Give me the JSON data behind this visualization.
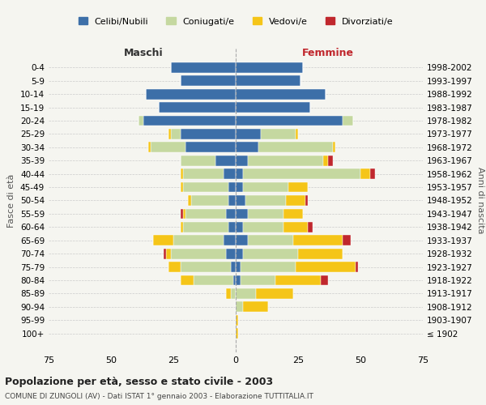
{
  "age_groups": [
    "0-4",
    "5-9",
    "10-14",
    "15-19",
    "20-24",
    "25-29",
    "30-34",
    "35-39",
    "40-44",
    "45-49",
    "50-54",
    "55-59",
    "60-64",
    "65-69",
    "70-74",
    "75-79",
    "80-84",
    "85-89",
    "90-94",
    "95-99",
    "100+"
  ],
  "birth_years": [
    "1998-2002",
    "1993-1997",
    "1988-1992",
    "1983-1987",
    "1978-1982",
    "1973-1977",
    "1968-1972",
    "1963-1967",
    "1958-1962",
    "1953-1957",
    "1948-1952",
    "1943-1947",
    "1938-1942",
    "1933-1937",
    "1928-1932",
    "1923-1927",
    "1918-1922",
    "1913-1917",
    "1908-1912",
    "1903-1907",
    "≤ 1902"
  ],
  "male_celibi": [
    26,
    22,
    36,
    31,
    37,
    22,
    20,
    8,
    5,
    3,
    3,
    4,
    3,
    5,
    4,
    2,
    1,
    0,
    0,
    0,
    0
  ],
  "male_coniugati": [
    0,
    0,
    0,
    0,
    2,
    4,
    14,
    14,
    16,
    18,
    15,
    16,
    18,
    20,
    22,
    20,
    16,
    2,
    0,
    0,
    0
  ],
  "male_vedovi": [
    0,
    0,
    0,
    0,
    0,
    1,
    1,
    0,
    1,
    1,
    1,
    1,
    1,
    8,
    2,
    5,
    5,
    2,
    0,
    0,
    0
  ],
  "male_divorziati": [
    0,
    0,
    0,
    0,
    0,
    0,
    0,
    0,
    0,
    0,
    0,
    1,
    0,
    0,
    1,
    0,
    0,
    0,
    0,
    0,
    0
  ],
  "female_celibi": [
    27,
    26,
    36,
    30,
    43,
    10,
    9,
    5,
    3,
    3,
    4,
    5,
    3,
    5,
    3,
    2,
    2,
    0,
    0,
    0,
    0
  ],
  "female_coniugati": [
    0,
    0,
    0,
    0,
    4,
    14,
    30,
    30,
    47,
    18,
    16,
    14,
    16,
    18,
    22,
    22,
    14,
    8,
    3,
    0,
    0
  ],
  "female_vedovi": [
    0,
    0,
    0,
    0,
    0,
    1,
    1,
    2,
    4,
    8,
    8,
    8,
    10,
    20,
    18,
    24,
    18,
    15,
    10,
    1,
    1
  ],
  "female_divorziati": [
    0,
    0,
    0,
    0,
    0,
    0,
    0,
    2,
    2,
    0,
    1,
    0,
    2,
    3,
    0,
    1,
    3,
    0,
    0,
    0,
    0
  ],
  "color_celibi": "#3d6fa8",
  "color_coniugati": "#c5d8a0",
  "color_vedovi": "#f5c518",
  "color_divorziati": "#c0272d",
  "background_color": "#f5f5f0",
  "title": "Popolazione per età, sesso e stato civile - 2003",
  "subtitle": "COMUNE DI ZUNGOLI (AV) - Dati ISTAT 1° gennaio 2003 - Elaborazione TUTTITALIA.IT",
  "xlabel_left": "Maschi",
  "xlabel_right": "Femmine",
  "ylabel_left": "Fasce di età",
  "ylabel_right": "Anni di nascita",
  "xlim": 75,
  "legend_labels": [
    "Celibi/Nubili",
    "Coniugati/e",
    "Vedovi/e",
    "Divorziati/e"
  ]
}
